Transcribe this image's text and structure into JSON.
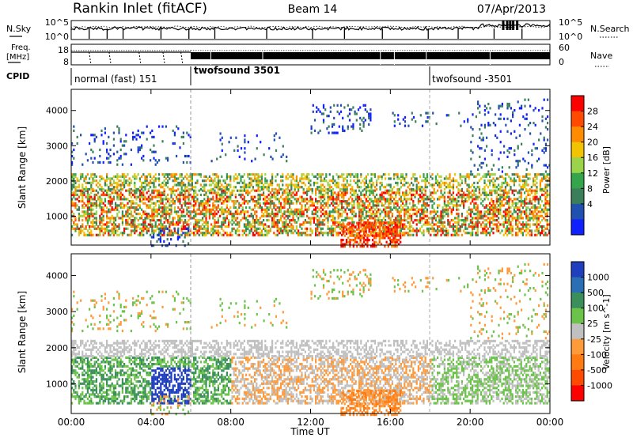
{
  "header": {
    "station": "Rankin Inlet (fitACF)",
    "beam": "Beam 14",
    "date": "07/Apr/2013"
  },
  "side_labels": {
    "nsky": "N.Sky",
    "nsearch": "N.Search",
    "freq_line1": "Freq.",
    "freq_line2": "[MHz]",
    "nave": "Nave",
    "cpid": "CPID"
  },
  "noise_axis": {
    "left_ticks": [
      "10^5",
      "10^0"
    ],
    "right_ticks": [
      "10^5",
      "10^0"
    ]
  },
  "freq_axis": {
    "left_ticks": [
      "18",
      "8"
    ],
    "right_ticks": [
      "60",
      "0"
    ]
  },
  "cpid_segments": [
    {
      "label": "normal (fast) 151",
      "start_h": 0
    },
    {
      "label": "twofsound 3501",
      "start_h": 6
    },
    {
      "label": "twofsound -3501",
      "start_h": 18
    }
  ],
  "time_axis": {
    "label": "Time UT",
    "ticks": [
      "00:00",
      "04:00",
      "08:00",
      "12:00",
      "16:00",
      "20:00",
      "00:00"
    ]
  },
  "chart_data": [
    {
      "type": "heatmap",
      "quantity": "Power",
      "ylabel": "Slant Range [km]",
      "yticks": [
        1000,
        2000,
        3000,
        4000
      ],
      "ylim": [
        180,
        4600
      ],
      "xlim_hours": [
        0,
        24
      ],
      "colorbar_label": "Power [dB]",
      "colorbar_ticks": [
        "28",
        "24",
        "20",
        "16",
        "12",
        "8",
        "4"
      ],
      "colorbar_colors": [
        "#ff0000",
        "#ff4a00",
        "#ff8c00",
        "#f2c300",
        "#9bd44a",
        "#35a54b",
        "#3a7f5a",
        "#2050b0",
        "#1020ff"
      ]
    },
    {
      "type": "heatmap",
      "quantity": "Velocity",
      "ylabel": "Slant Range [km]",
      "yticks": [
        1000,
        2000,
        3000,
        4000
      ],
      "ylim": [
        180,
        4600
      ],
      "xlim_hours": [
        0,
        24
      ],
      "colorbar_label": "Velocity [m s^-1]",
      "colorbar_ticks": [
        "1000",
        "500",
        "100",
        "25",
        "-25",
        "-100",
        "-500",
        "-1000"
      ],
      "colorbar_colors": [
        "#1f3fbf",
        "#2a6fb5",
        "#3a8f5a",
        "#6cc34a",
        "#c0c0c0",
        "#ff9a3a",
        "#ff7a10",
        "#ff4a00",
        "#ff0000"
      ]
    }
  ]
}
